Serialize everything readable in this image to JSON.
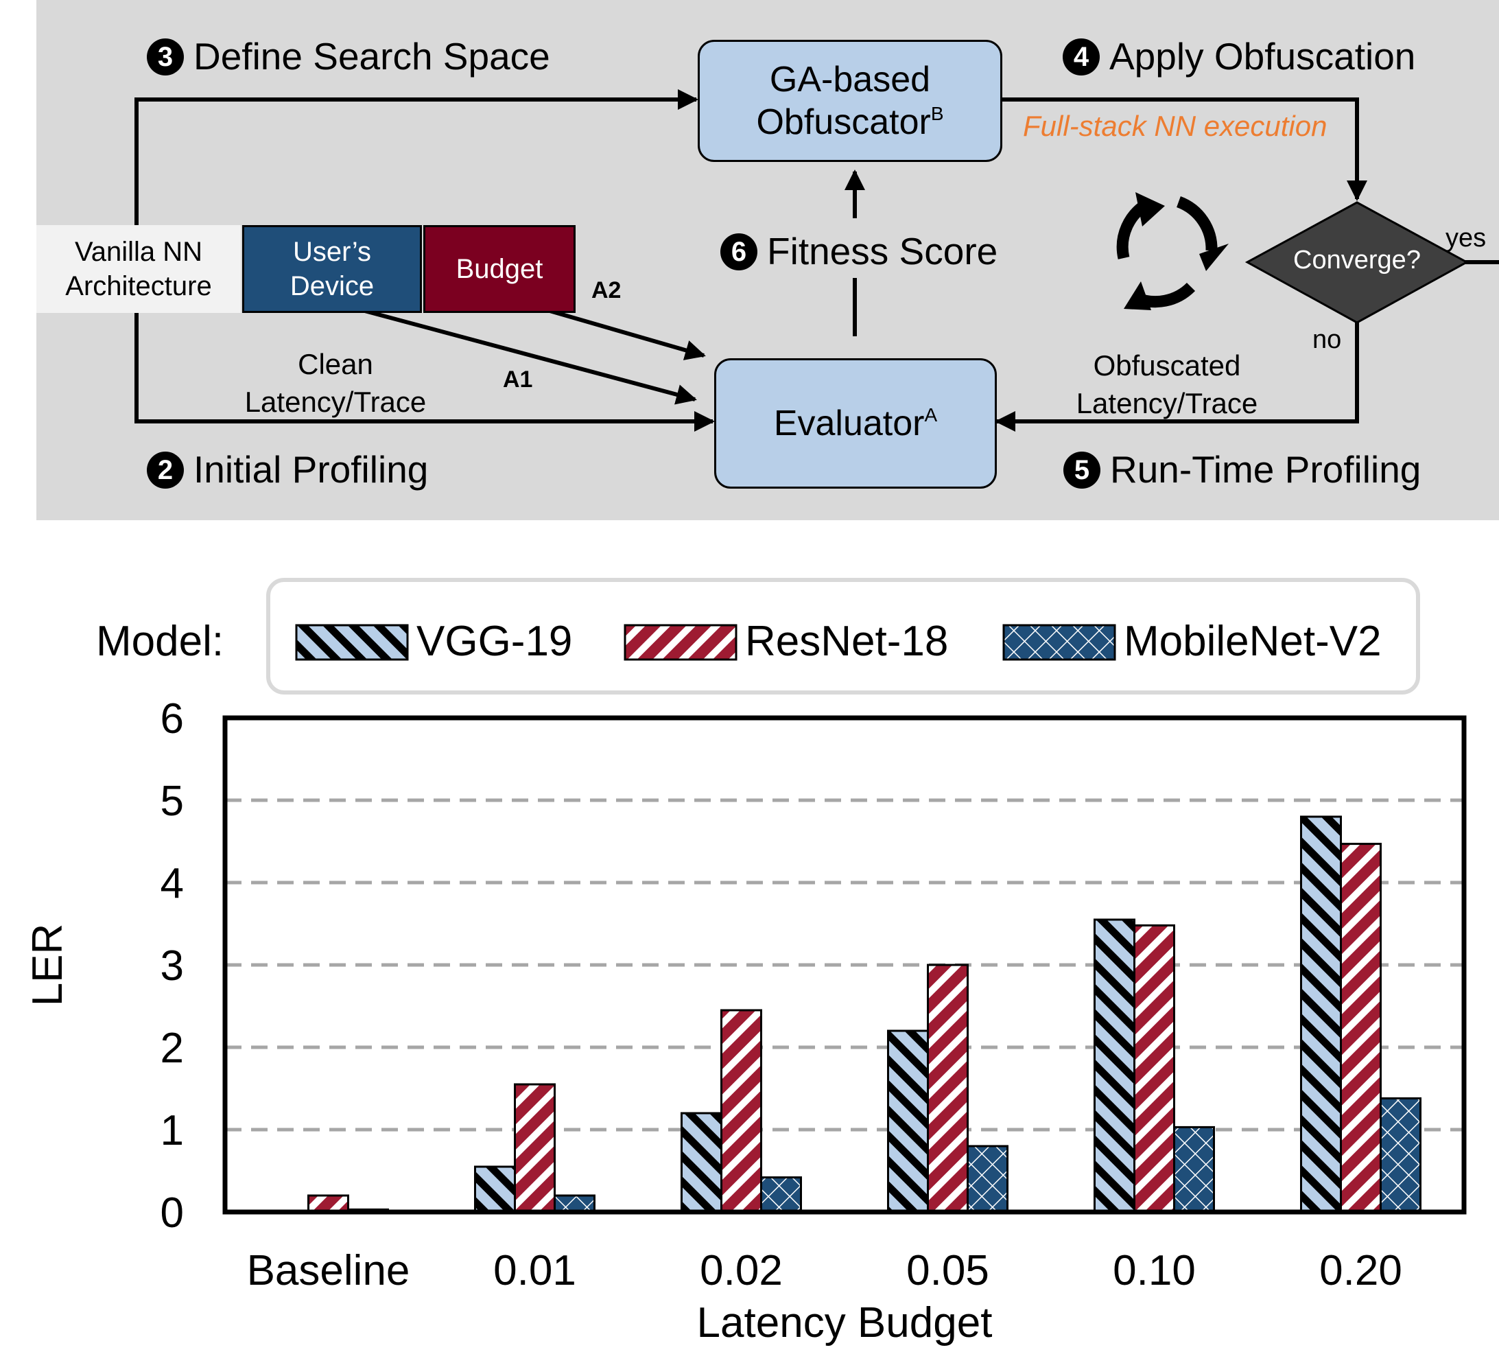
{
  "flow": {
    "steps": {
      "define": {
        "num": "3",
        "label": "Define Search Space"
      },
      "apply": {
        "num": "4",
        "label": "Apply Obfuscation"
      },
      "fitness": {
        "num": "6",
        "label": "Fitness Score"
      },
      "initial": {
        "num": "2",
        "label": "Initial Profiling"
      },
      "runtime": {
        "num": "5",
        "label": "Run-Time Profiling"
      }
    },
    "obfuscator": {
      "line1": "GA-based",
      "line2": "Obfuscator",
      "sup": "B"
    },
    "evaluator": {
      "label": "Evaluator",
      "sup": "A"
    },
    "inputs": {
      "vanilla": {
        "line1": "Vanilla NN",
        "line2": "Architecture"
      },
      "device": {
        "line1": "User’s",
        "line2": "Device"
      },
      "budget": {
        "label": "Budget"
      }
    },
    "full_stack": "Full-stack NN execution",
    "converge": "Converge?",
    "yes": "yes",
    "no": "no",
    "clean": {
      "line1": "Clean",
      "line2": "Latency/Trace"
    },
    "obfuscated": {
      "line1": "Obfuscated",
      "line2": "Latency/Trace"
    },
    "a1": "A1",
    "a2": "A2",
    "colors": {
      "panel": "#d9d9d9",
      "box": "#b8cfe8",
      "device": "#1f4e79",
      "budget": "#7b0020",
      "orange": "#ed7d31",
      "diamond": "#3f3f3f"
    }
  },
  "chart_data": {
    "type": "bar",
    "legend_title": "Model:",
    "categories": [
      "Baseline",
      "0.01",
      "0.02",
      "0.05",
      "0.10",
      "0.20"
    ],
    "series": [
      {
        "name": "VGG-19",
        "values": [
          0.0,
          0.55,
          1.2,
          2.2,
          3.55,
          4.8
        ],
        "color": "#b8cfe8",
        "pattern": "hatch-back"
      },
      {
        "name": "ResNet-18",
        "values": [
          0.2,
          1.55,
          2.45,
          3.0,
          3.48,
          4.47
        ],
        "color": "#9e1b32",
        "pattern": "hatch-forward"
      },
      {
        "name": "MobileNet-V2",
        "values": [
          0.03,
          0.2,
          0.42,
          0.8,
          1.03,
          1.38
        ],
        "color": "#1f4e79",
        "pattern": "crosshatch"
      }
    ],
    "xlabel": "Latency Budget",
    "ylabel": "LER",
    "ylim": [
      0,
      6
    ],
    "yticks": [
      0,
      1,
      2,
      3,
      4,
      5,
      6
    ],
    "grid": "dashed horizontal",
    "legend_position": "top"
  }
}
